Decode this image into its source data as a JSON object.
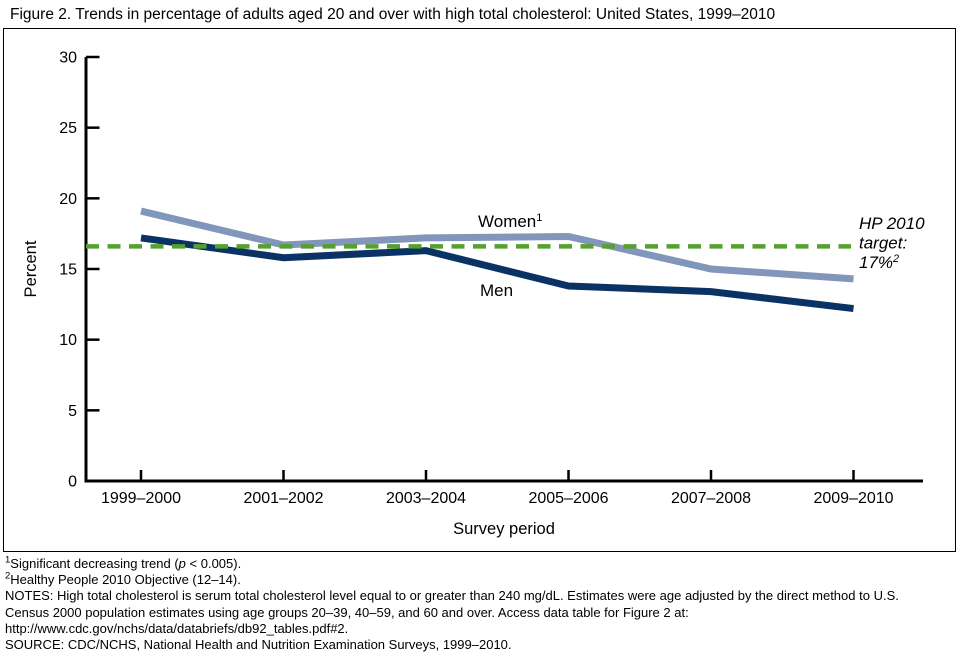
{
  "title": "Figure 2. Trends in percentage of adults aged 20 and over with high total cholesterol: United States, 1999–2010",
  "chart_data": {
    "type": "line",
    "title": "Trends in percentage of adults aged 20 and over with high total cholesterol: United States, 1999–2010",
    "xlabel": "Survey period",
    "ylabel": "Percent",
    "ylim": [
      0,
      30
    ],
    "yticks": [
      0,
      5,
      10,
      15,
      20,
      25,
      30
    ],
    "grid": false,
    "legend": "inline-labels",
    "categories": [
      "1999–2000",
      "2001–2002",
      "2003–2004",
      "2005–2006",
      "2007–2008",
      "2009–2010"
    ],
    "series": [
      {
        "name": "Women",
        "sup": "1",
        "values": [
          19.1,
          16.7,
          17.2,
          17.3,
          15.0,
          14.3
        ],
        "color": "#8295ba"
      },
      {
        "name": "Men",
        "sup": "",
        "values": [
          17.2,
          15.8,
          16.3,
          13.8,
          13.4,
          12.2
        ],
        "color": "#0a3264"
      }
    ],
    "target_line": {
      "value": 17,
      "drawn_at": 16.6,
      "color": "#55a02f",
      "text_color": "#69a73f",
      "label_lines": [
        "HP 2010",
        "target:"
      ],
      "value_text": "17%",
      "value_sup": "2"
    }
  },
  "footnotes": {
    "line1": {
      "sup": "1",
      "pre": "Significant decreasing trend (",
      "italic": "p",
      "post": " < 0.005)."
    },
    "line2": {
      "sup": "2",
      "text": "Healthy People 2010 Objective (12–14)."
    },
    "line3": "NOTES: High total cholesterol is serum total cholesterol level equal to or greater than 240 mg/dL. Estimates were age adjusted by the direct method to U.S.",
    "line4": "Census 2000 population estimates using age groups 20–39, 40–59, and 60 and over. Access data table for Figure 2 at:",
    "line5": "http://www.cdc.gov/nchs/data/databriefs/db92_tables.pdf#2.",
    "line6": "SOURCE: CDC/NCHS, National Health and Nutrition Examination Surveys, 1999–2010."
  }
}
